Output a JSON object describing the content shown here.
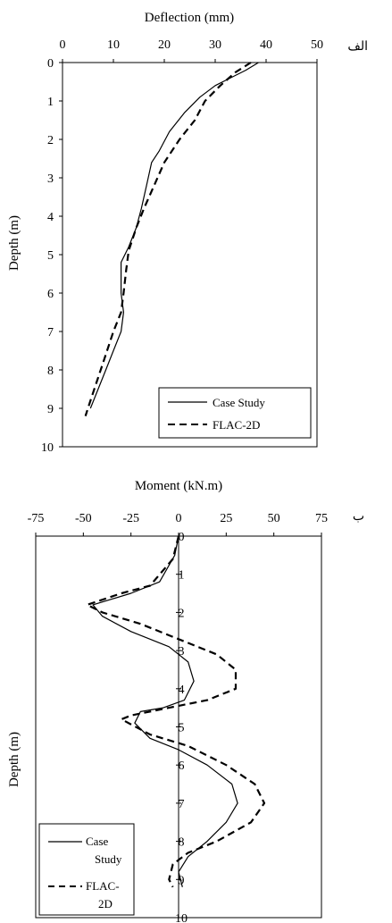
{
  "chart_data": [
    {
      "type": "line",
      "panel_label": "الف",
      "xlabel": "Deflection (mm)",
      "ylabel": "Depth (m)",
      "xlim": [
        0,
        50
      ],
      "ylim": [
        0,
        10
      ],
      "x_ticks": [
        0,
        10,
        20,
        30,
        40,
        50
      ],
      "y_ticks": [
        0,
        1,
        2,
        3,
        4,
        5,
        6,
        7,
        8,
        9,
        10
      ],
      "x_axis_position": "top",
      "y_inverted": true,
      "grid": false,
      "legend_position": "bottom-right",
      "series": [
        {
          "name": "Case Study",
          "style": "solid",
          "points": [
            [
              38.5,
              0
            ],
            [
              36,
              0.2
            ],
            [
              30,
              0.6
            ],
            [
              27,
              0.9
            ],
            [
              24,
              1.3
            ],
            [
              21,
              1.8
            ],
            [
              19,
              2.3
            ],
            [
              17.5,
              2.6
            ],
            [
              16.5,
              3.2
            ],
            [
              15.5,
              3.8
            ],
            [
              14.5,
              4.3
            ],
            [
              13,
              4.8
            ],
            [
              11.5,
              5.2
            ],
            [
              11.5,
              6.0
            ],
            [
              12,
              6.5
            ],
            [
              11.5,
              7.0
            ],
            [
              10,
              7.5
            ],
            [
              8.5,
              8.0
            ],
            [
              7,
              8.5
            ],
            [
              5.5,
              9.0
            ]
          ]
        },
        {
          "name": "FLAC-2D",
          "style": "dashed",
          "points": [
            [
              37,
              0
            ],
            [
              34,
              0.25
            ],
            [
              31,
              0.6
            ],
            [
              28,
              1.0
            ],
            [
              26,
              1.5
            ],
            [
              23,
              2.0
            ],
            [
              20,
              2.6
            ],
            [
              18,
              3.2
            ],
            [
              16,
              3.8
            ],
            [
              14.5,
              4.3
            ],
            [
              13,
              4.9
            ],
            [
              12.5,
              5.4
            ],
            [
              12,
              6.0
            ],
            [
              11.5,
              6.5
            ],
            [
              10,
              7.0
            ],
            [
              8.5,
              7.6
            ],
            [
              7,
              8.2
            ],
            [
              5.5,
              8.8
            ],
            [
              4.5,
              9.2
            ]
          ]
        }
      ]
    },
    {
      "type": "line",
      "panel_label": "ب",
      "xlabel": "Moment (kN.m)",
      "ylabel": "Depth (m)",
      "xlim": [
        -75,
        75
      ],
      "ylim": [
        0,
        10
      ],
      "x_ticks": [
        -75,
        -50,
        -25,
        0,
        25,
        50,
        75
      ],
      "y_ticks": [
        0,
        1,
        2,
        3,
        4,
        5,
        6,
        7,
        8,
        9,
        10
      ],
      "x_axis_position": "top",
      "y_inverted": true,
      "grid": false,
      "legend_position": "bottom-left",
      "legend_labels": [
        [
          "Case",
          "Study"
        ],
        [
          "FLAC-",
          "2D"
        ]
      ],
      "series": [
        {
          "name": "Case Study",
          "style": "solid",
          "points": [
            [
              0,
              0
            ],
            [
              -2,
              0.5
            ],
            [
              -10,
              1.2
            ],
            [
              -25,
              1.5
            ],
            [
              -45,
              1.8
            ],
            [
              -40,
              2.1
            ],
            [
              -25,
              2.5
            ],
            [
              -5,
              2.9
            ],
            [
              5,
              3.3
            ],
            [
              8,
              3.8
            ],
            [
              3,
              4.3
            ],
            [
              -8,
              4.5
            ],
            [
              -20,
              4.6
            ],
            [
              -23,
              4.9
            ],
            [
              -15,
              5.3
            ],
            [
              0,
              5.6
            ],
            [
              15,
              6.0
            ],
            [
              28,
              6.5
            ],
            [
              31,
              7.0
            ],
            [
              25,
              7.5
            ],
            [
              15,
              8.0
            ],
            [
              5,
              8.4
            ],
            [
              0,
              8.8
            ],
            [
              2,
              9.2
            ]
          ]
        },
        {
          "name": "FLAC-2D",
          "style": "dashed",
          "points": [
            [
              0,
              0
            ],
            [
              -3,
              0.6
            ],
            [
              -15,
              1.3
            ],
            [
              -30,
              1.5
            ],
            [
              -48,
              1.8
            ],
            [
              -40,
              2.0
            ],
            [
              -20,
              2.3
            ],
            [
              0,
              2.7
            ],
            [
              20,
              3.1
            ],
            [
              30,
              3.5
            ],
            [
              30,
              4.0
            ],
            [
              15,
              4.3
            ],
            [
              -5,
              4.5
            ],
            [
              -25,
              4.7
            ],
            [
              -30,
              4.8
            ],
            [
              -15,
              5.2
            ],
            [
              5,
              5.5
            ],
            [
              25,
              6.0
            ],
            [
              40,
              6.5
            ],
            [
              45,
              7.0
            ],
            [
              38,
              7.5
            ],
            [
              20,
              8.0
            ],
            [
              5,
              8.3
            ],
            [
              -3,
              8.6
            ],
            [
              -5,
              9.0
            ],
            [
              -3,
              9.2
            ]
          ]
        }
      ]
    }
  ]
}
